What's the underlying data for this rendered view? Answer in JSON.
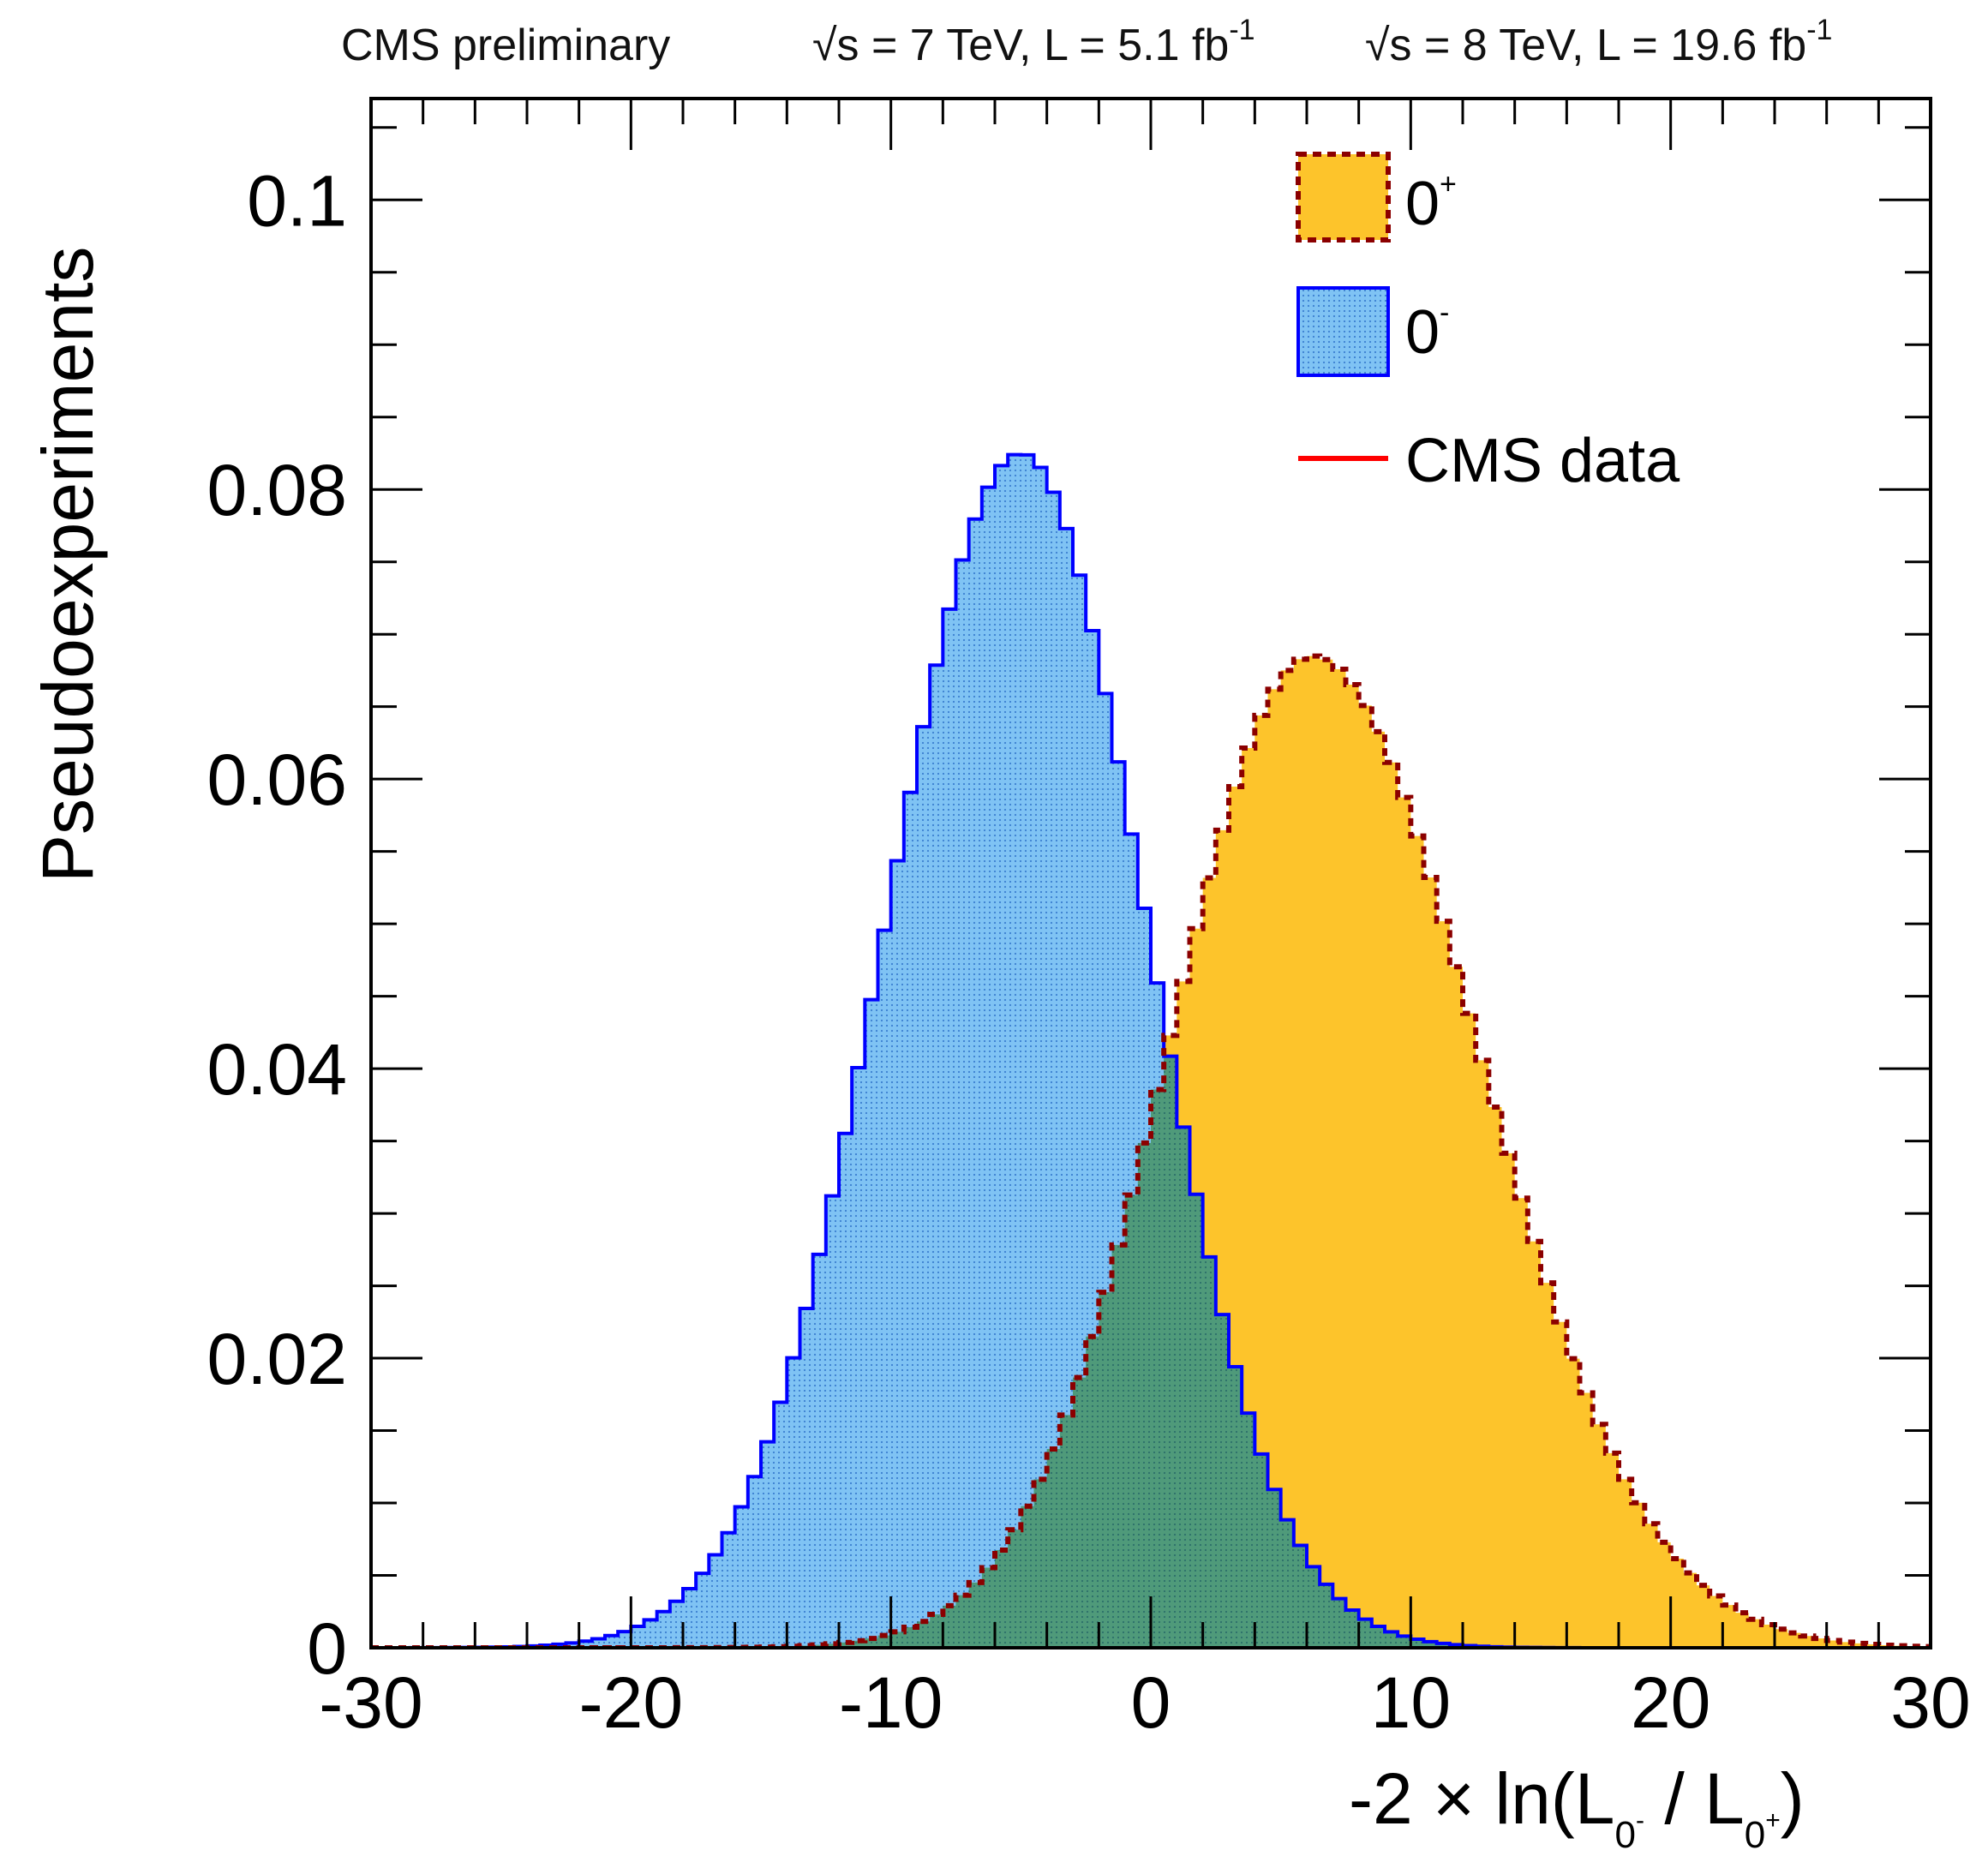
{
  "header": {
    "experiment": "CMS preliminary",
    "lumi7": "√s = 7 TeV, L = 5.1 fb",
    "lumi7_exp": "-1",
    "lumi8": "√s = 8 TeV, L = 19.6 fb",
    "lumi8_exp": "-1"
  },
  "colors": {
    "zero_plus_fill": "#fdc42b",
    "zero_plus_line": "#8b0000",
    "zero_minus_fill": "#7fc3f4",
    "zero_minus_line": "#0000ff",
    "data_line": "#ff0000",
    "overlap_fill": "#4f9a7a"
  },
  "chart_data": {
    "type": "histogram",
    "title": "",
    "xlabel_parts": {
      "pre": "-2 × ln(L",
      "sub1": "0",
      "sub1_sup": "-",
      "mid": " / L",
      "sub2": "0",
      "sub2_sup": "+",
      "post": ")"
    },
    "ylabel": "Pseudoexperiments",
    "xlim": [
      -30,
      30
    ],
    "ylim": [
      0,
      0.107
    ],
    "x_ticks": [
      -30,
      -20,
      -10,
      0,
      10,
      20,
      30
    ],
    "x_tick_labels": [
      "-30",
      "-20",
      "-10",
      "0",
      "10",
      "20",
      "30"
    ],
    "y_ticks": [
      0,
      0.02,
      0.04,
      0.06,
      0.08,
      0.1
    ],
    "y_tick_labels": [
      "0",
      "0.02",
      "0.04",
      "0.06",
      "0.08",
      "0.1"
    ],
    "legend_position": "top-right",
    "bin_width": 0.5,
    "series": [
      {
        "name": "0",
        "name_sup": "+",
        "style": "filled-dashed",
        "gauss": {
          "mean": 6.2,
          "sigma": 5.55,
          "peak": 0.0685,
          "right_tail_sigma": 6.4
        }
      },
      {
        "name": "0",
        "name_sup": "-",
        "style": "filled-hatched",
        "gauss": {
          "mean": -5.0,
          "sigma": 4.85,
          "peak": 0.0825,
          "left_tail_sigma": 5.2
        }
      },
      {
        "name": "CMS data",
        "style": "line"
      }
    ]
  }
}
